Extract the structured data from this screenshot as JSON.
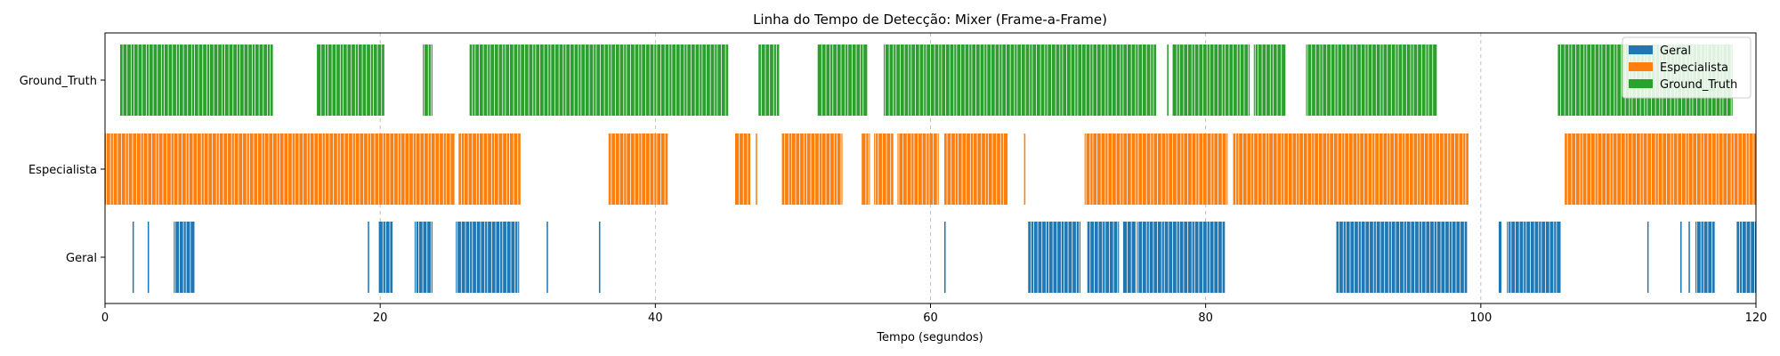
{
  "chart_data": {
    "type": "event_timeline",
    "title": "Linha do Tempo de Detecção: Mixer (Frame-a-Frame)",
    "xlabel": "Tempo (segundos)",
    "ylabel": "",
    "xlim": [
      0,
      120
    ],
    "x_ticks": [
      0,
      20,
      40,
      60,
      80,
      100,
      120
    ],
    "grid": "x dashed",
    "legend_position": "top-right",
    "categories": [
      "Geral",
      "Especialista",
      "Ground_Truth"
    ],
    "step_seconds": 0.1,
    "series": [
      {
        "name": "Geral",
        "color": "#1f77b4",
        "intervals": [
          [
            2.0,
            2.1
          ],
          [
            3.1,
            3.2
          ],
          [
            5.0,
            6.5
          ],
          [
            19.1,
            19.2
          ],
          [
            19.9,
            20.9
          ],
          [
            22.5,
            23.8
          ],
          [
            25.5,
            30.1
          ],
          [
            32.1,
            32.2
          ],
          [
            35.9,
            36.0
          ],
          [
            61.0,
            61.1
          ],
          [
            67.1,
            70.9
          ],
          [
            71.4,
            73.7
          ],
          [
            74.0,
            74.9
          ],
          [
            75.0,
            81.4
          ],
          [
            89.5,
            99.0
          ],
          [
            101.3,
            101.5
          ],
          [
            101.9,
            105.8
          ],
          [
            112.1,
            112.2
          ],
          [
            114.5,
            114.6
          ],
          [
            115.1,
            115.2
          ],
          [
            115.6,
            117.0
          ],
          [
            118.6,
            120.0
          ]
        ]
      },
      {
        "name": "Especialista",
        "color": "#ff7f0e",
        "intervals": [
          [
            0.0,
            25.4
          ],
          [
            25.7,
            30.2
          ],
          [
            36.6,
            40.9
          ],
          [
            45.8,
            46.9
          ],
          [
            47.3,
            47.4
          ],
          [
            49.2,
            53.6
          ],
          [
            55.0,
            55.6
          ],
          [
            55.9,
            57.3
          ],
          [
            57.6,
            60.6
          ],
          [
            61.0,
            65.6
          ],
          [
            66.8,
            66.9
          ],
          [
            71.2,
            81.6
          ],
          [
            82.0,
            99.1
          ],
          [
            106.1,
            120.0
          ]
        ]
      },
      {
        "name": "Ground_Truth",
        "color": "#2ca02c",
        "intervals": [
          [
            1.1,
            12.2
          ],
          [
            15.4,
            20.3
          ],
          [
            23.1,
            23.8
          ],
          [
            26.5,
            45.3
          ],
          [
            47.5,
            49.0
          ],
          [
            51.8,
            55.4
          ],
          [
            56.6,
            76.4
          ],
          [
            77.2,
            77.3
          ],
          [
            77.6,
            83.2
          ],
          [
            83.5,
            85.8
          ],
          [
            87.3,
            96.8
          ],
          [
            105.6,
            118.3
          ]
        ]
      }
    ]
  }
}
